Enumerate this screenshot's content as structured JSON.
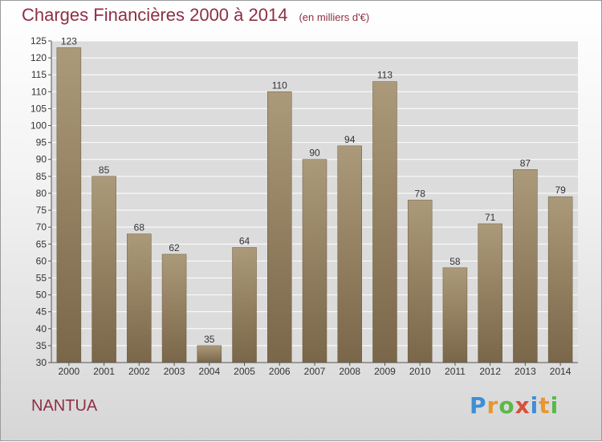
{
  "header": {
    "title": "Charges Financières 2000 à 2014",
    "unit": "(en milliers d'€)"
  },
  "footer": {
    "place": "NANTUA",
    "logo": "Proxiti"
  },
  "colors": {
    "bar_top": "#ab9a7a",
    "bar_bottom": "#7a6648",
    "title": "#8e2f46",
    "grid": "#ffffff",
    "plot_bg": "#dcdcdc"
  },
  "chart_data": {
    "type": "bar",
    "title": "Charges Financières 2000 à 2014",
    "subtitle": "(en milliers d'€)",
    "categories": [
      "2000",
      "2001",
      "2002",
      "2003",
      "2004",
      "2005",
      "2006",
      "2007",
      "2008",
      "2009",
      "2010",
      "2011",
      "2012",
      "2013",
      "2014"
    ],
    "values": [
      123,
      85,
      68,
      62,
      35,
      64,
      110,
      90,
      94,
      113,
      78,
      58,
      71,
      87,
      79
    ],
    "ylim": [
      30,
      125
    ],
    "yticks": [
      30,
      35,
      40,
      45,
      50,
      55,
      60,
      65,
      70,
      75,
      80,
      85,
      90,
      95,
      100,
      105,
      110,
      115,
      120,
      125
    ],
    "grid": true,
    "data_labels": true,
    "legend": "none"
  }
}
